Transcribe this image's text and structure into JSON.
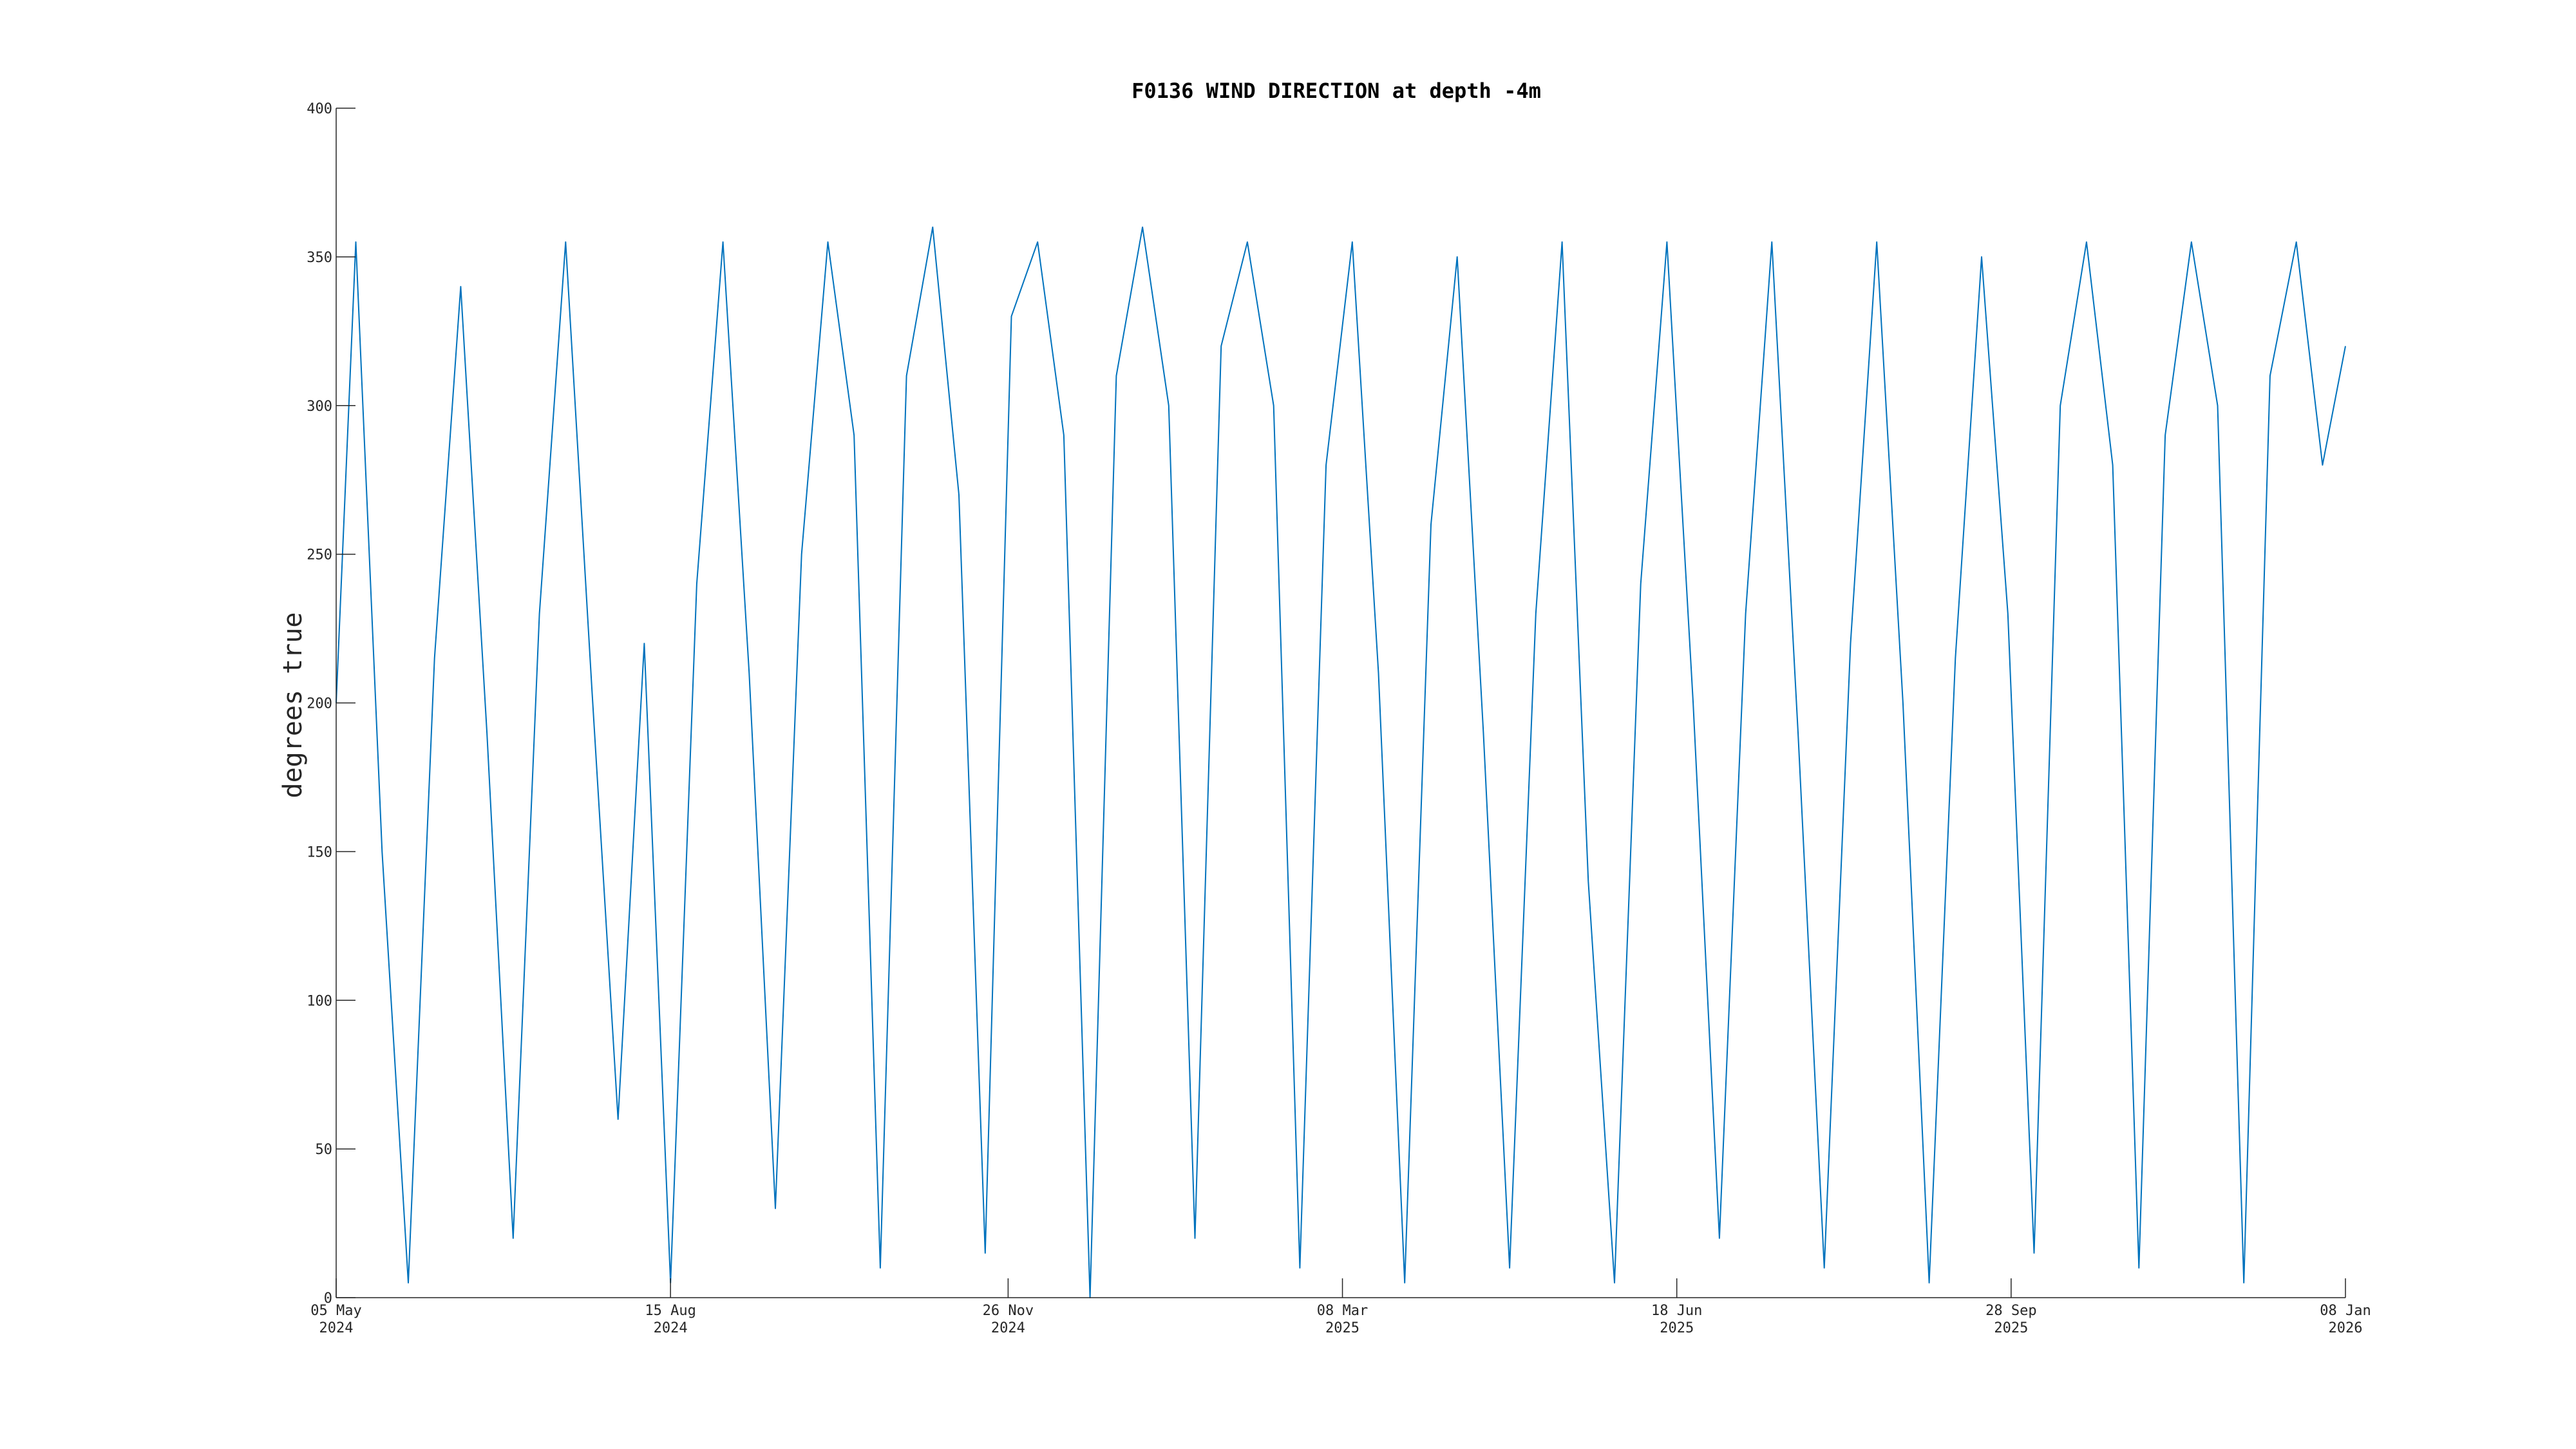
{
  "chart_data": {
    "type": "line",
    "title": "F0136 WIND DIRECTION at depth -4m",
    "xlabel": "",
    "ylabel": "degrees true",
    "ylim": [
      0,
      400
    ],
    "xlim": [
      "2024-05-05",
      "2026-01-08"
    ],
    "grid": false,
    "legend": "none",
    "x_ticks": [
      {
        "date": "2024-05-05",
        "line1": "05 May",
        "line2": "2024"
      },
      {
        "date": "2024-08-15",
        "line1": "15 Aug",
        "line2": "2024"
      },
      {
        "date": "2024-11-26",
        "line1": "26 Nov",
        "line2": "2024"
      },
      {
        "date": "2025-03-08",
        "line1": "08 Mar",
        "line2": "2025"
      },
      {
        "date": "2025-06-18",
        "line1": "18 Jun",
        "line2": "2025"
      },
      {
        "date": "2025-09-28",
        "line1": "28 Sep",
        "line2": "2025"
      },
      {
        "date": "2026-01-08",
        "line1": "08 Jan",
        "line2": "2026"
      }
    ],
    "y_ticks": [
      0,
      50,
      100,
      150,
      200,
      250,
      300,
      350,
      400
    ],
    "series": [
      {
        "color": "#0072bd",
        "points": [
          [
            "2024-05-05",
            200
          ],
          [
            "2024-05-11",
            355
          ],
          [
            "2024-05-19",
            150
          ],
          [
            "2024-05-27",
            5
          ],
          [
            "2024-06-04",
            215
          ],
          [
            "2024-06-12",
            340
          ],
          [
            "2024-06-20",
            190
          ],
          [
            "2024-06-28",
            20
          ],
          [
            "2024-07-06",
            230
          ],
          [
            "2024-07-14",
            355
          ],
          [
            "2024-07-22",
            205
          ],
          [
            "2024-07-30",
            60
          ],
          [
            "2024-08-07",
            220
          ],
          [
            "2024-08-15",
            5
          ],
          [
            "2024-08-23",
            240
          ],
          [
            "2024-08-31",
            355
          ],
          [
            "2024-09-08",
            210
          ],
          [
            "2024-09-16",
            30
          ],
          [
            "2024-09-24",
            250
          ],
          [
            "2024-10-02",
            355
          ],
          [
            "2024-10-10",
            290
          ],
          [
            "2024-10-18",
            10
          ],
          [
            "2024-10-26",
            310
          ],
          [
            "2024-11-03",
            360
          ],
          [
            "2024-11-11",
            270
          ],
          [
            "2024-11-19",
            15
          ],
          [
            "2024-11-27",
            330
          ],
          [
            "2024-12-05",
            355
          ],
          [
            "2024-12-13",
            290
          ],
          [
            "2024-12-21",
            0
          ],
          [
            "2024-12-29",
            310
          ],
          [
            "2025-01-06",
            360
          ],
          [
            "2025-01-14",
            300
          ],
          [
            "2025-01-22",
            20
          ],
          [
            "2025-01-30",
            320
          ],
          [
            "2025-02-07",
            355
          ],
          [
            "2025-02-15",
            300
          ],
          [
            "2025-02-23",
            10
          ],
          [
            "2025-03-03",
            280
          ],
          [
            "2025-03-11",
            355
          ],
          [
            "2025-03-19",
            210
          ],
          [
            "2025-03-27",
            5
          ],
          [
            "2025-04-04",
            260
          ],
          [
            "2025-04-12",
            350
          ],
          [
            "2025-04-20",
            190
          ],
          [
            "2025-04-28",
            10
          ],
          [
            "2025-05-06",
            230
          ],
          [
            "2025-05-14",
            355
          ],
          [
            "2025-05-22",
            140
          ],
          [
            "2025-05-30",
            5
          ],
          [
            "2025-06-07",
            240
          ],
          [
            "2025-06-15",
            355
          ],
          [
            "2025-06-23",
            200
          ],
          [
            "2025-07-01",
            20
          ],
          [
            "2025-07-09",
            230
          ],
          [
            "2025-07-17",
            355
          ],
          [
            "2025-07-25",
            190
          ],
          [
            "2025-08-02",
            10
          ],
          [
            "2025-08-10",
            220
          ],
          [
            "2025-08-18",
            355
          ],
          [
            "2025-08-26",
            200
          ],
          [
            "2025-09-03",
            5
          ],
          [
            "2025-09-11",
            215
          ],
          [
            "2025-09-19",
            350
          ],
          [
            "2025-09-27",
            230
          ],
          [
            "2025-10-05",
            15
          ],
          [
            "2025-10-13",
            300
          ],
          [
            "2025-10-21",
            355
          ],
          [
            "2025-10-29",
            280
          ],
          [
            "2025-11-06",
            10
          ],
          [
            "2025-11-14",
            290
          ],
          [
            "2025-11-22",
            355
          ],
          [
            "2025-11-30",
            300
          ],
          [
            "2025-12-08",
            5
          ],
          [
            "2025-12-16",
            310
          ],
          [
            "2025-12-24",
            355
          ],
          [
            "2026-01-01",
            280
          ],
          [
            "2026-01-08",
            320
          ]
        ]
      }
    ]
  }
}
